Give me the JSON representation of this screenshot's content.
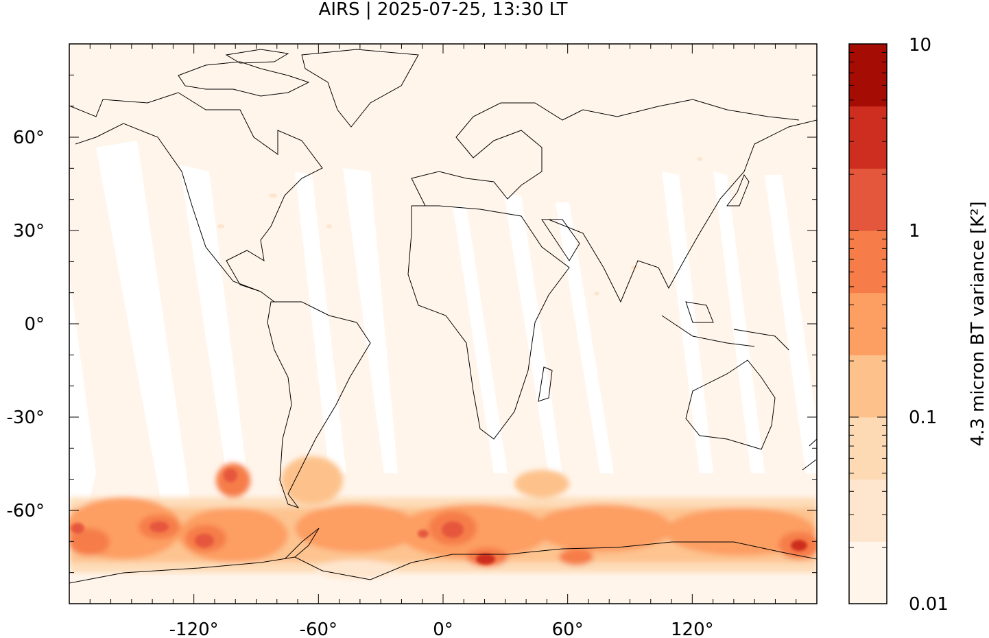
{
  "title": "AIRS | 2025-07-25, 13:30 LT",
  "map": {
    "type": "equirectangular-map",
    "lon_range": [
      -180,
      180
    ],
    "lat_range": [
      -90,
      90
    ],
    "x_ticks": [
      {
        "value": -120,
        "label": "-120°"
      },
      {
        "value": -60,
        "label": "-60°"
      },
      {
        "value": 0,
        "label": "0°"
      },
      {
        "value": 60,
        "label": "60°"
      },
      {
        "value": 120,
        "label": "120°"
      }
    ],
    "y_ticks": [
      {
        "value": 60,
        "label": "60°"
      },
      {
        "value": 30,
        "label": "30°"
      },
      {
        "value": 0,
        "label": "0°"
      },
      {
        "value": -30,
        "label": "-30°"
      },
      {
        "value": -60,
        "label": "-60°"
      }
    ],
    "background_color": "#fff5eb",
    "swath_gap_color": "#ffffff",
    "coastline_color": "#000000"
  },
  "colorbar": {
    "label": "4.3 micron BT variance [K²]",
    "scale": "log",
    "range": [
      0.01,
      10
    ],
    "tick_labels": [
      {
        "value": 10,
        "label": "10"
      },
      {
        "value": 1,
        "label": "1"
      },
      {
        "value": 0.1,
        "label": "0.1"
      },
      {
        "value": 0.01,
        "label": "0.01"
      }
    ],
    "colors": [
      "#fff5eb",
      "#fee6ce",
      "#fdd9b4",
      "#fdc28c",
      "#fd9f63",
      "#f67d4a",
      "#e5573c",
      "#cd2e1f",
      "#a50c04"
    ]
  }
}
